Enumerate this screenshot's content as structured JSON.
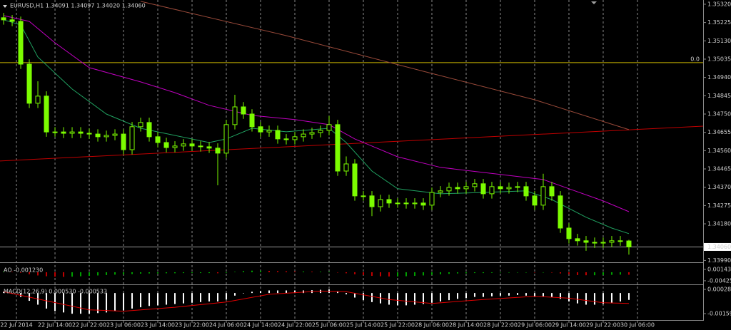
{
  "chart_data": [
    {
      "type": "candlestick",
      "header": "EURUSD,H1  1.34091 1.34097 1.34020 1.34060",
      "open": [
        1.3525,
        1.35239,
        1.35231,
        1.35009,
        1.34806,
        1.34843,
        1.34657,
        1.34657,
        1.3465,
        1.34657,
        1.3465,
        1.34646,
        1.34632,
        1.34639,
        1.34646,
        1.34565,
        1.34684,
        1.34706,
        1.34632,
        1.34602,
        1.34576,
        1.34584,
        1.34595,
        1.34584,
        1.3458,
        1.34573,
        1.34547,
        1.34695,
        1.34787,
        1.3475,
        1.34684,
        1.34657,
        1.34665,
        1.34621,
        1.34617,
        1.34632,
        1.34646,
        1.34654,
        1.34665,
        1.34695,
        1.34454,
        1.34491,
        1.34325,
        1.34325,
        1.34269,
        1.34306,
        1.34288,
        1.34288,
        1.34284,
        1.34288,
        1.34277,
        1.34343,
        1.34351,
        1.34369,
        1.34362,
        1.34373,
        1.34388,
        1.34336,
        1.34373,
        1.34362,
        1.34369,
        1.34373,
        1.34325,
        1.34277,
        1.34373,
        1.34325,
        1.34158,
        1.34103,
        1.34092,
        1.34084,
        1.3408,
        1.34084,
        1.34092,
        1.34091
      ],
      "high": [
        1.35275,
        1.35264,
        1.35256,
        1.35034,
        1.3492,
        1.34868,
        1.34682,
        1.34682,
        1.34682,
        1.34682,
        1.34675,
        1.34671,
        1.34664,
        1.34671,
        1.34671,
        1.34709,
        1.34731,
        1.34731,
        1.34657,
        1.34627,
        1.34609,
        1.3462,
        1.3462,
        1.34609,
        1.34605,
        1.34598,
        1.3472,
        1.3485,
        1.34812,
        1.34775,
        1.34709,
        1.3469,
        1.3469,
        1.34646,
        1.34657,
        1.34671,
        1.34679,
        1.3469,
        1.3474,
        1.3472,
        1.3453,
        1.34516,
        1.3435,
        1.3435,
        1.34331,
        1.34331,
        1.34313,
        1.34313,
        1.34313,
        1.34313,
        1.34368,
        1.34376,
        1.34394,
        1.34394,
        1.34398,
        1.34413,
        1.34413,
        1.34398,
        1.34398,
        1.34394,
        1.34398,
        1.34398,
        1.3435,
        1.3444,
        1.34398,
        1.3435,
        1.34183,
        1.34128,
        1.34117,
        1.34109,
        1.34109,
        1.34117,
        1.34117,
        1.34097
      ],
      "low": [
        1.35214,
        1.35206,
        1.34984,
        1.34781,
        1.34781,
        1.34632,
        1.34632,
        1.34625,
        1.34625,
        1.34625,
        1.34621,
        1.34607,
        1.34607,
        1.34614,
        1.3454,
        1.3454,
        1.34659,
        1.34607,
        1.34577,
        1.34551,
        1.34551,
        1.34559,
        1.34559,
        1.34555,
        1.34548,
        1.3438,
        1.34522,
        1.3467,
        1.34725,
        1.34659,
        1.34632,
        1.34632,
        1.34596,
        1.34592,
        1.34592,
        1.34607,
        1.34621,
        1.34629,
        1.3464,
        1.34429,
        1.34429,
        1.343,
        1.343,
        1.3422,
        1.34244,
        1.34263,
        1.34263,
        1.34259,
        1.34259,
        1.34252,
        1.34252,
        1.34318,
        1.34326,
        1.34337,
        1.34337,
        1.34348,
        1.34311,
        1.34311,
        1.34337,
        1.34337,
        1.34344,
        1.343,
        1.34252,
        1.34252,
        1.343,
        1.34133,
        1.34078,
        1.34067,
        1.3404,
        1.34055,
        1.34055,
        1.34059,
        1.34066,
        1.3402
      ],
      "close": [
        1.35239,
        1.35231,
        1.35009,
        1.34806,
        1.34843,
        1.34657,
        1.34657,
        1.3465,
        1.34657,
        1.3465,
        1.34646,
        1.34632,
        1.34639,
        1.34646,
        1.34565,
        1.34684,
        1.34706,
        1.34632,
        1.34602,
        1.34576,
        1.34584,
        1.34595,
        1.34584,
        1.3458,
        1.34573,
        1.34547,
        1.34695,
        1.34787,
        1.3475,
        1.34684,
        1.34657,
        1.34665,
        1.34621,
        1.34617,
        1.34632,
        1.34646,
        1.34654,
        1.34665,
        1.34695,
        1.34454,
        1.34491,
        1.34325,
        1.34325,
        1.34269,
        1.34306,
        1.34288,
        1.34288,
        1.34284,
        1.34288,
        1.34277,
        1.34343,
        1.34351,
        1.34369,
        1.34362,
        1.34373,
        1.34388,
        1.34336,
        1.34373,
        1.34362,
        1.34369,
        1.34373,
        1.34325,
        1.34277,
        1.34373,
        1.34325,
        1.34158,
        1.34103,
        1.34092,
        1.34084,
        1.3408,
        1.34084,
        1.34092,
        1.34091,
        1.3406
      ],
      "color": "#7cfc00",
      "lines": [
        {
          "color": "#c00000",
          "x": [
            -0.42,
            81.67
          ],
          "values": [
            1.34506,
            1.34687
          ]
        },
        {
          "color": "#9a4a3a",
          "x": [
            16,
            33,
            49,
            62,
            73
          ],
          "values": [
            1.35335,
            1.35157,
            1.34972,
            1.34824,
            1.34669
          ]
        },
        {
          "color": "#c000c0",
          "x": [
            0,
            3,
            6,
            10,
            16,
            20,
            24,
            29,
            34,
            38,
            41,
            46,
            51,
            58,
            63,
            66,
            70,
            73
          ],
          "values": [
            1.35261,
            1.35231,
            1.3512,
            1.34991,
            1.34917,
            1.34861,
            1.34795,
            1.34743,
            1.34721,
            1.34695,
            1.34621,
            1.34528,
            1.34473,
            1.34436,
            1.3441,
            1.34362,
            1.34299,
            1.34243
          ]
        },
        {
          "color": "#20a060",
          "x": [
            0,
            2,
            4,
            8,
            12,
            16,
            20,
            24,
            26,
            29,
            33,
            38,
            40,
            43,
            46,
            51,
            56,
            61,
            64,
            68,
            71,
            73
          ],
          "values": [
            1.35239,
            1.35213,
            1.35046,
            1.3488,
            1.3475,
            1.34676,
            1.34639,
            1.34602,
            1.34621,
            1.34676,
            1.34658,
            1.34676,
            1.34602,
            1.34454,
            1.34362,
            1.34336,
            1.34343,
            1.34351,
            1.34306,
            1.34214,
            1.34158,
            1.34129
          ]
        }
      ],
      "level": {
        "value": 1.35017,
        "label": "0.0",
        "color": "#c8b400"
      },
      "current_price_label": "1.34060",
      "xlim": [
        -0.42,
        81.67
      ],
      "ylim": [
        1.33984,
        1.35342
      ],
      "yticks": [
        {
          "value": 1.3532,
          "label": "1.35320"
        },
        1.35225,
        {
          "value": 1.3513,
          "label": "1.35130"
        },
        1.35035,
        {
          "value": 1.3494,
          "label": "1.34940"
        },
        1.34845,
        {
          "value": 1.3475,
          "label": "1.34750"
        },
        1.34655,
        {
          "value": 1.3456,
          "label": "1.34560"
        },
        1.34465,
        {
          "value": 1.3437,
          "label": "1.34370"
        },
        1.34275,
        {
          "value": 1.3418,
          "label": "1.34180"
        },
        {
          "value": 1.3399,
          "label": "1.33990"
        }
      ],
      "xticks": [
        {
          "value": 1.5,
          "label": "22 Jul 2014"
        },
        {
          "value": 6,
          "label": "22 Jul 14:00"
        },
        {
          "value": 10,
          "label": "22 Jul 22:00"
        },
        {
          "value": 14,
          "label": "23 Jul 06:00"
        },
        {
          "value": 18,
          "label": "23 Jul 14:00"
        },
        {
          "value": 22,
          "label": "23 Jul 22:00"
        },
        {
          "value": 26,
          "label": "24 Jul 06:00"
        },
        {
          "value": 30,
          "label": "24 Jul 14:00"
        },
        {
          "value": 34,
          "label": "24 Jul 22:00"
        },
        {
          "value": 38,
          "label": "25 Jul 06:00"
        },
        {
          "value": 42,
          "label": "25 Jul 14:00"
        },
        {
          "value": 46,
          "label": "25 Jul 22:00"
        },
        {
          "value": 50,
          "label": "28 Jul 06:00"
        },
        {
          "value": 54,
          "label": "28 Jul 14:00"
        },
        {
          "value": 58,
          "label": "28 Jul 22:00"
        },
        {
          "value": 62,
          "label": "29 Jul 06:00"
        },
        {
          "value": 66,
          "label": "29 Jul 14:00"
        },
        {
          "value": 70,
          "label": "29 Jul 22:00"
        },
        {
          "value": 74,
          "label": "30 Jul 06:00"
        }
      ],
      "grid": true
    },
    {
      "type": "bar",
      "header": "AO -0.001230",
      "values": [
        0.0003,
        0.0002,
        -0.0003,
        -0.001,
        -0.0016,
        -0.002,
        -0.0022,
        -0.0023,
        -0.0022,
        -0.002,
        -0.0018,
        -0.0016,
        -0.0014,
        -0.0012,
        -0.0011,
        -0.0009,
        -0.0007,
        -0.0006,
        -0.0006,
        -0.0005,
        -0.0005,
        -0.0004,
        -0.0004,
        -0.0004,
        -0.0004,
        -0.0005,
        -0.0003,
        0.0002,
        0.0006,
        0.0008,
        0.0008,
        0.0007,
        0.0006,
        0.0005,
        0.0004,
        0.0004,
        0.0003,
        0.0003,
        0.0003,
        -0.0001,
        -0.0005,
        -0.001,
        -0.0014,
        -0.0018,
        -0.002,
        -0.0021,
        -0.0021,
        -0.002,
        -0.0018,
        -0.0016,
        -0.0013,
        -0.001,
        -0.0008,
        -0.0006,
        -0.0005,
        -0.0004,
        -0.0004,
        -0.0003,
        -0.0002,
        -0.0002,
        -0.0001,
        -0.0001,
        -0.0002,
        -0.0001,
        -0.0002,
        -0.0006,
        -0.001,
        -0.0014,
        -0.0015,
        -0.0015,
        -0.0014,
        -0.0013,
        -0.0012,
        -0.00123
      ],
      "up_color": "#00a000",
      "down_color": "#c00000",
      "xlim": [
        -0.42,
        81.67
      ],
      "ylim": [
        -0.0057,
        0.0039
      ],
      "yticks": [
        0.00143,
        -0.00425
      ]
    },
    {
      "type": "bar",
      "header": "MACD(12,26,9) 0.000530 -0.000533",
      "values": [
        0.0001,
        0,
        -0.0003,
        -0.0006,
        -0.0009,
        -0.0012,
        -0.0014,
        -0.0015,
        -0.0016,
        -0.0016,
        -0.0016,
        -0.00155,
        -0.0015,
        -0.0014,
        -0.00135,
        -0.0012,
        -0.0011,
        -0.001,
        -0.00095,
        -0.0009,
        -0.00085,
        -0.0008,
        -0.00075,
        -0.0007,
        -0.00065,
        -0.00065,
        -0.0005,
        -0.0002,
        0,
        0.0001,
        0.00015,
        0.0002,
        0.0002,
        0.0002,
        0.0002,
        0.0002,
        0.00022,
        0.00025,
        0.00028,
        0.0001,
        -0.0001,
        -0.00035,
        -0.00055,
        -0.0007,
        -0.0008,
        -0.0009,
        -0.00095,
        -0.00095,
        -0.0009,
        -0.00085,
        -0.00075,
        -0.00065,
        -0.00055,
        -0.00045,
        -0.0004,
        -0.0003,
        -0.0003,
        -0.00025,
        -0.0002,
        -0.0002,
        -0.00015,
        -0.0002,
        -0.0003,
        -0.00025,
        -0.0003,
        -0.00045,
        -0.00065,
        -0.0008,
        -0.0009,
        -0.0009,
        -0.00085,
        -0.00075,
        -0.00065,
        -0.00053
      ],
      "color": "#ffffff",
      "signal": {
        "color": "#e00000",
        "x": [
          0,
          5,
          10,
          14,
          20,
          26,
          31,
          37,
          40,
          45,
          50,
          56,
          62,
          66,
          70,
          73
        ],
        "values": [
          0.0001,
          -0.0006,
          -0.0013,
          -0.0014,
          -0.0011,
          -0.0007,
          -0.0001,
          0.00015,
          0.0001,
          -0.0005,
          -0.0008,
          -0.0005,
          -0.00025,
          -0.0004,
          -0.00075,
          -0.0008
        ]
      },
      "xlim": [
        -0.42,
        81.67
      ],
      "ylim": [
        -0.00203,
        0.000558
      ],
      "yticks": [
        0.000282,
        -0.00159
      ]
    }
  ]
}
